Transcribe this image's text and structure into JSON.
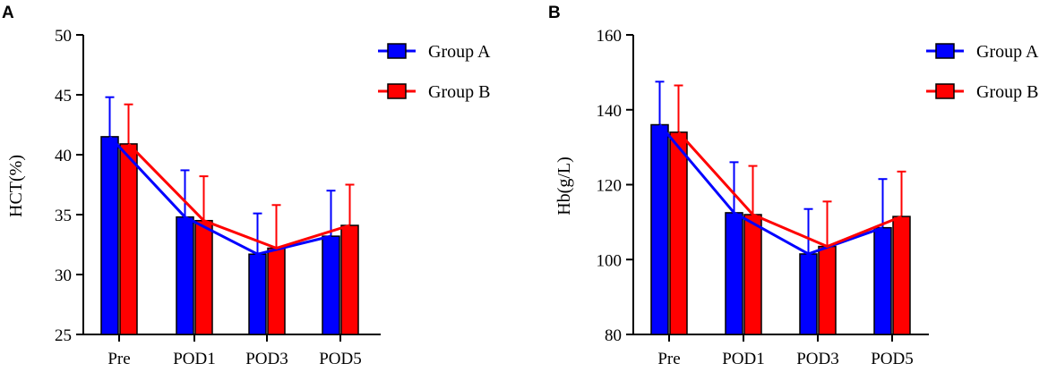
{
  "chart_data": [
    {
      "panel": "A",
      "type": "bar",
      "title": "",
      "xlabel": "",
      "ylabel": "HCT(%)",
      "ylim": [
        25,
        50
      ],
      "yticks": [
        25,
        30,
        35,
        40,
        45,
        50
      ],
      "categories": [
        "Pre",
        "POD1",
        "POD3",
        "POD5"
      ],
      "series": [
        {
          "name": "Group A",
          "color": "#0000ff",
          "values": [
            41.5,
            34.8,
            31.7,
            33.2
          ],
          "errors": [
            3.3,
            3.9,
            3.4,
            3.8
          ]
        },
        {
          "name": "Group B",
          "color": "#ff0000",
          "values": [
            40.9,
            34.5,
            32.2,
            34.1
          ],
          "errors": [
            3.3,
            3.7,
            3.6,
            3.4
          ]
        }
      ],
      "legend": "top-right"
    },
    {
      "panel": "B",
      "type": "bar",
      "title": "",
      "xlabel": "",
      "ylabel": "Hb(g/L)",
      "ylim": [
        80,
        160
      ],
      "yticks": [
        80,
        100,
        120,
        140,
        160
      ],
      "categories": [
        "Pre",
        "POD1",
        "POD3",
        "POD5"
      ],
      "series": [
        {
          "name": "Group A",
          "color": "#0000ff",
          "values": [
            136,
            112.5,
            101.5,
            108.5
          ],
          "errors": [
            11.5,
            13.5,
            12,
            13
          ]
        },
        {
          "name": "Group B",
          "color": "#ff0000",
          "values": [
            134,
            112,
            103.5,
            111.5
          ],
          "errors": [
            12.5,
            13,
            12,
            12
          ]
        }
      ],
      "legend": "top-right"
    }
  ]
}
